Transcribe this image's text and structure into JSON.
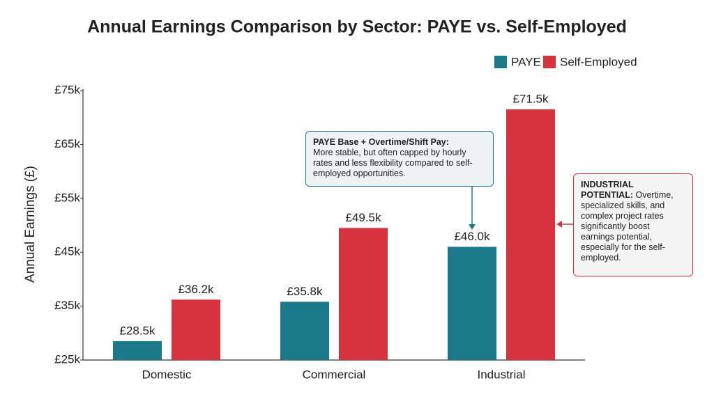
{
  "chart_data": {
    "type": "bar",
    "title": "Annual Earnings Comparison by Sector: PAYE vs. Self-Employed",
    "y_label": "Annual Earnings (£)",
    "categories": [
      "Domestic",
      "Commercial",
      "Industrial"
    ],
    "series": [
      {
        "name": "PAYE",
        "color": "#1b7a89",
        "values": [
          28500,
          35800,
          46000
        ],
        "value_labels": [
          "£28.5k",
          "£35.8k",
          "£46.0k"
        ]
      },
      {
        "name": "Self-Employed",
        "color": "#d8323f",
        "values": [
          36200,
          49500,
          71500
        ],
        "value_labels": [
          "£36.2k",
          "£49.5k",
          "£71.5k"
        ]
      }
    ],
    "ylim": [
      25000,
      75000
    ],
    "yticks": [
      {
        "value": 25000,
        "label": "£25k"
      },
      {
        "value": 35000,
        "label": "£35k"
      },
      {
        "value": 45000,
        "label": "£45k"
      },
      {
        "value": 55000,
        "label": "£55k"
      },
      {
        "value": 65000,
        "label": "£65k"
      },
      {
        "value": 75000,
        "label": "£75k"
      }
    ],
    "grid": false,
    "legend": "top-right",
    "annotations": [
      {
        "title": "PAYE Base + Overtime/Shift Pay:",
        "text": "More stable, but often capped by hourly rates and less flexibility compared to self-employed opportunities."
      },
      {
        "title": "INDUSTRIAL POTENTIAL:",
        "text": "Overtime, specialized skills, and complex project rates significantly boost earnings potential, especially for the self-employed."
      }
    ]
  }
}
